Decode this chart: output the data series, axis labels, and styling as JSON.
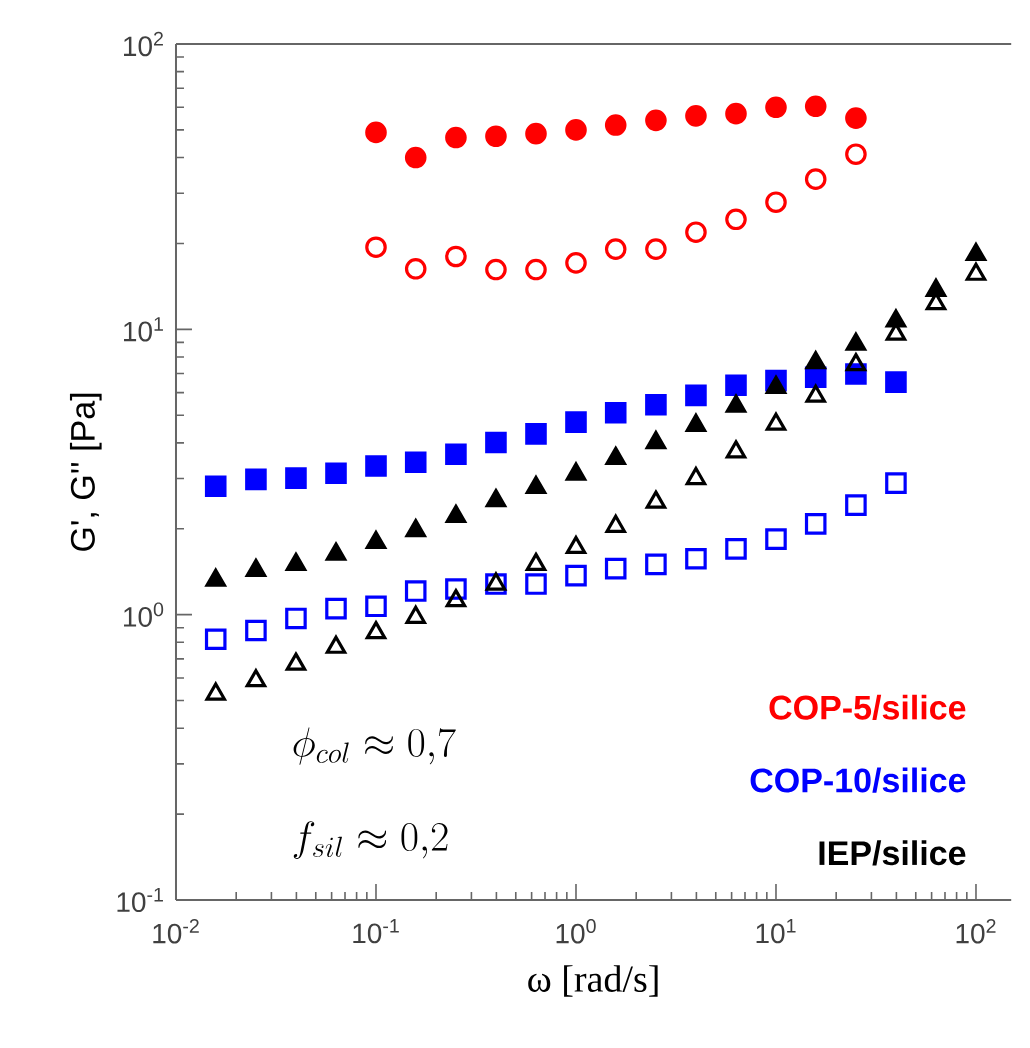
{
  "chart_data": {
    "type": "scatter",
    "xlabel": "ω [rad/s]",
    "ylabel": "G', G'' [Pa]",
    "log": "xy",
    "grid": false,
    "xlim": [
      0.01,
      150
    ],
    "ylim": [
      0.1,
      100
    ],
    "xticks": [
      {
        "value": 0.01,
        "label": "10$^{-2}$"
      },
      {
        "value": 0.1,
        "label": "10$^{-1}$"
      },
      {
        "value": 1,
        "label": "10$^{0}$"
      },
      {
        "value": 10,
        "label": "10$^{1}$"
      },
      {
        "value": 100,
        "label": "10$^{2}$"
      }
    ],
    "yticks": [
      {
        "value": 0.1,
        "label": "10$^{-1}$"
      },
      {
        "value": 1,
        "label": "10$^{0}$"
      },
      {
        "value": 10,
        "label": "10$^{1}$"
      },
      {
        "value": 100,
        "label": "10$^{2}$"
      }
    ],
    "annotations": [
      "\\phi_{col} \\approx 0{,}7",
      "f_{sil} \\approx 0{,}2"
    ],
    "series": [
      {
        "name": "COP-5/silice",
        "color": "#ff0000",
        "marker": "circle",
        "x": [
          0.1,
          0.158,
          0.251,
          0.398,
          0.631,
          1,
          1.58,
          2.51,
          3.98,
          6.31,
          10,
          15.8,
          25.1
        ],
        "values": [
          49,
          40,
          47,
          47.5,
          48.5,
          50,
          52,
          54,
          56,
          57,
          60,
          60.5,
          55
        ]
      },
      {
        "color": "#ff0000",
        "marker": "circle",
        "x": [
          0.1,
          0.158,
          0.251,
          0.398,
          0.631,
          1,
          1.58,
          2.51,
          3.98,
          6.31,
          10,
          15.8,
          25.1
        ],
        "values": [
          19.4,
          16.3,
          18,
          16.2,
          16.2,
          17.1,
          19.1,
          19.1,
          21.9,
          24.3,
          27.9,
          33.6,
          41.1
        ]
      },
      {
        "name": "COP-10/silice",
        "color": "#0000ff",
        "marker": "square",
        "x": [
          0.0158,
          0.0251,
          0.0398,
          0.0631,
          0.1,
          0.158,
          0.251,
          0.398,
          0.631,
          1,
          1.58,
          2.51,
          3.98,
          6.31,
          10,
          15.8,
          25.1,
          39.8
        ],
        "values": [
          2.82,
          2.98,
          3.01,
          3.13,
          3.32,
          3.42,
          3.65,
          4.01,
          4.3,
          4.73,
          5.1,
          5.44,
          5.87,
          6.37,
          6.61,
          6.79,
          6.97,
          6.53
        ]
      },
      {
        "color": "#0000ff",
        "marker": "square",
        "x": [
          0.0158,
          0.0251,
          0.0398,
          0.0631,
          0.1,
          0.158,
          0.251,
          0.398,
          0.631,
          1,
          1.58,
          2.51,
          3.98,
          6.31,
          10,
          15.8,
          25.1,
          39.8
        ],
        "values": [
          0.82,
          0.88,
          0.97,
          1.05,
          1.07,
          1.21,
          1.23,
          1.28,
          1.28,
          1.37,
          1.45,
          1.5,
          1.57,
          1.7,
          1.84,
          2.08,
          2.42,
          2.89
        ]
      },
      {
        "name": "IEP/silice",
        "color": "#000000",
        "marker": "triangle",
        "x": [
          0.0158,
          0.0251,
          0.0398,
          0.0631,
          0.1,
          0.158,
          0.251,
          0.398,
          0.631,
          1,
          1.58,
          2.51,
          3.98,
          6.31,
          10,
          15.8,
          25.1,
          39.8,
          63.1,
          100
        ],
        "values": [
          1.32,
          1.43,
          1.5,
          1.63,
          1.79,
          1.97,
          2.21,
          2.51,
          2.79,
          3.11,
          3.53,
          4.01,
          4.61,
          5.38,
          6.26,
          7.64,
          8.87,
          10.7,
          13.7,
          18.3
        ]
      },
      {
        "color": "#000000",
        "marker": "triangle",
        "x": [
          0.0158,
          0.0251,
          0.0398,
          0.0631,
          0.1,
          0.158,
          0.251,
          0.398,
          0.631,
          1,
          1.58,
          2.51,
          3.98,
          6.31,
          10,
          15.8,
          25.1,
          39.8,
          63.1,
          100
        ],
        "values": [
          0.527,
          0.587,
          0.671,
          0.769,
          0.865,
          0.979,
          1.12,
          1.28,
          1.5,
          1.72,
          2.04,
          2.48,
          3,
          3.72,
          4.65,
          5.83,
          7.52,
          9.62,
          12.3,
          15.6
        ]
      }
    ]
  }
}
